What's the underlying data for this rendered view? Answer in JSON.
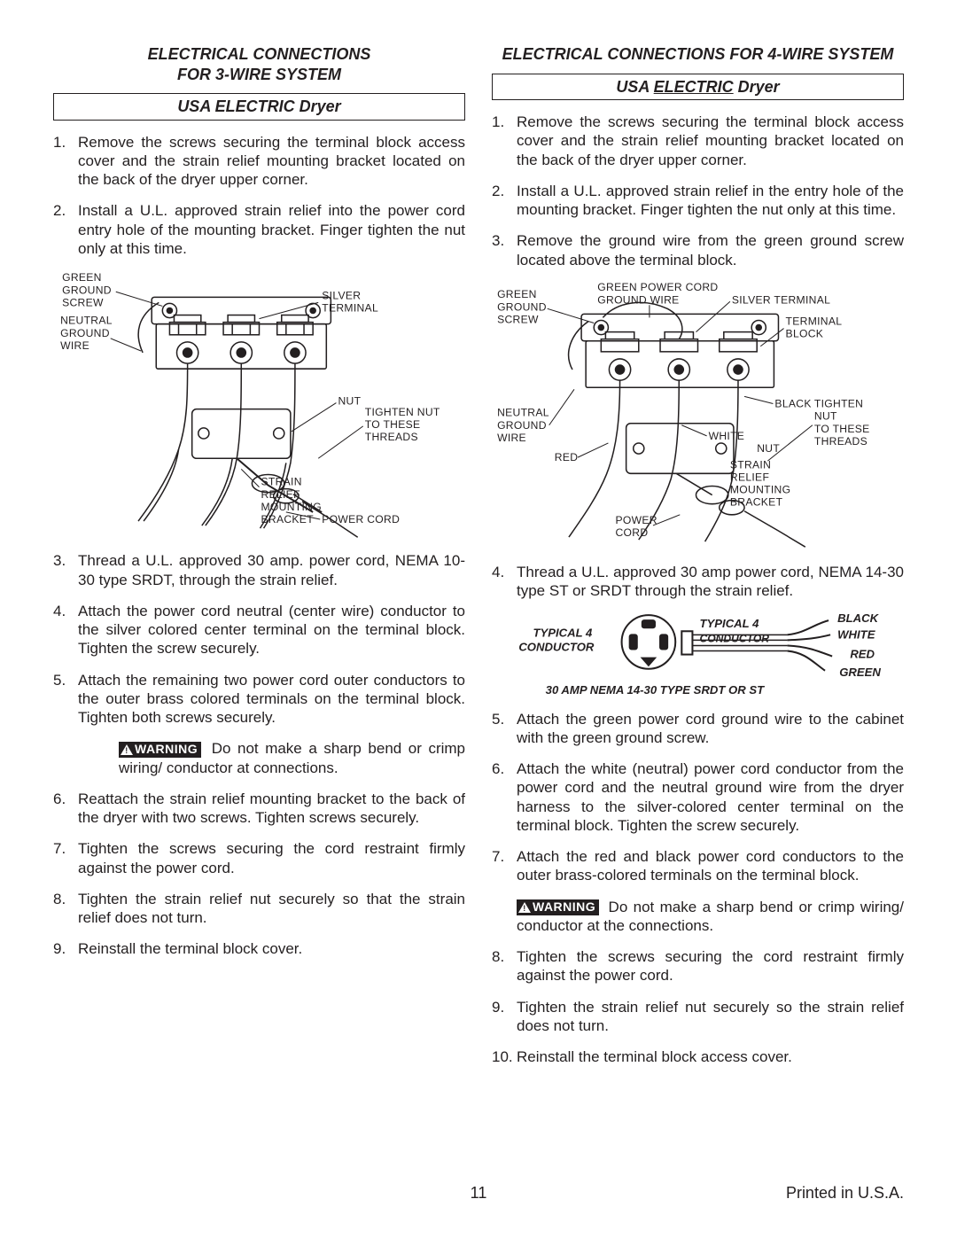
{
  "left": {
    "title": "ELECTRICAL CONNECTIONS\nFOR 3-WIRE SYSTEM",
    "box": "USA ELECTRIC Dryer",
    "steps": [
      "Remove the screws securing the terminal block access cover and the strain relief mounting bracket located on the back of the dryer upper corner.",
      "Install a U.L. approved strain relief into the power cord entry hole of the mounting bracket. Finger tighten the nut only at this time.",
      "Thread a U.L. approved 30 amp. power cord, NEMA 10-30 type SRDT, through the strain relief.",
      "Attach the power cord neutral (center wire) conductor to the silver colored center terminal on the terminal block. Tighten the screw securely.",
      "Attach the remaining two power cord outer conductors to the outer brass colored terminals on the terminal block. Tighten both screws securely.",
      "Reattach the strain relief mounting bracket to the back of the dryer with two screws. Tighten screws securely.",
      "Tighten the screws securing the cord restraint firmly against the power cord.",
      "Tighten the strain relief nut securely so that the strain relief does not turn.",
      "Reinstall the terminal block cover."
    ],
    "warning": "Do not make a sharp bend or crimp wiring/ conductor at connections.",
    "warning_after": 5,
    "diag": {
      "green_ground_screw": "GREEN\nGROUND\nSCREW",
      "neutral_ground_wire": "NEUTRAL\nGROUND\nWIRE",
      "silver_terminal": "SILVER\nTERMINAL",
      "nut": "NUT",
      "tighten": "TIGHTEN NUT\nTO THESE\nTHREADS",
      "strain_relief": "STRAIN\nRELIEF\nMOUNTING\nBRACKET",
      "power_cord": "POWER CORD"
    }
  },
  "right": {
    "title": "ELECTRICAL CONNECTIONS FOR 4-WIRE SYSTEM",
    "box": "USA ELECTRIC Dryer",
    "steps": [
      "Remove the screws securing the terminal block access cover and the strain relief mounting bracket located on the back of the dryer upper corner.",
      "Install a U.L. approved strain relief in the entry hole of the mounting bracket. Finger tighten the nut only at this time.",
      "Remove the ground wire from the green ground screw located above the terminal block.",
      "Thread a U.L. approved 30 amp power cord, NEMA 14-30 type ST or SRDT through the strain relief.",
      "Attach the green power cord ground wire to the cabinet with the green ground screw.",
      "Attach the white (neutral) power cord conductor from the power cord and the neutral ground wire from the dryer harness to the silver-colored center terminal on the terminal block. Tighten the screw securely.",
      "Attach the red and black power cord conductors to the outer brass-colored terminals on the terminal block.",
      "Tighten the screws securing the cord restraint firmly against the power cord.",
      "Tighten the strain relief nut securely so the strain relief does not turn.",
      "Reinstall the terminal block access cover."
    ],
    "warning": "Do not make a sharp bend or crimp wiring/ conductor at the connections.",
    "warning_after": 7,
    "diag": {
      "green_ground_screw": "GREEN\nGROUND\nSCREW",
      "green_power_cord": "GREEN POWER CORD\nGROUND WIRE",
      "silver_terminal": "SILVER TERMINAL",
      "terminal_block": "TERMINAL\nBLOCK",
      "neutral_ground_wire": "NEUTRAL\nGROUND\nWIRE",
      "red": "RED",
      "white": "WHITE",
      "black": "BLACK",
      "nut": "NUT",
      "tighten": "TIGHTEN\nNUT\nTO THESE\nTHREADS",
      "strain_relief": "STRAIN\nRELIEF\nMOUNTING\nBRACKET",
      "power_cord": "POWER\nCORD"
    },
    "plug": {
      "left": "TYPICAL 4\nCONDUCTOR",
      "right": "TYPICAL 4\nCONDUCTOR",
      "black": "BLACK",
      "white": "WHITE",
      "red": "RED",
      "green": "GREEN",
      "bottom": "30 AMP NEMA 14-30 TYPE SRDT OR ST"
    }
  },
  "warning_label": "WARNING",
  "footer_page": "11",
  "footer_right": "Printed in U.S.A."
}
